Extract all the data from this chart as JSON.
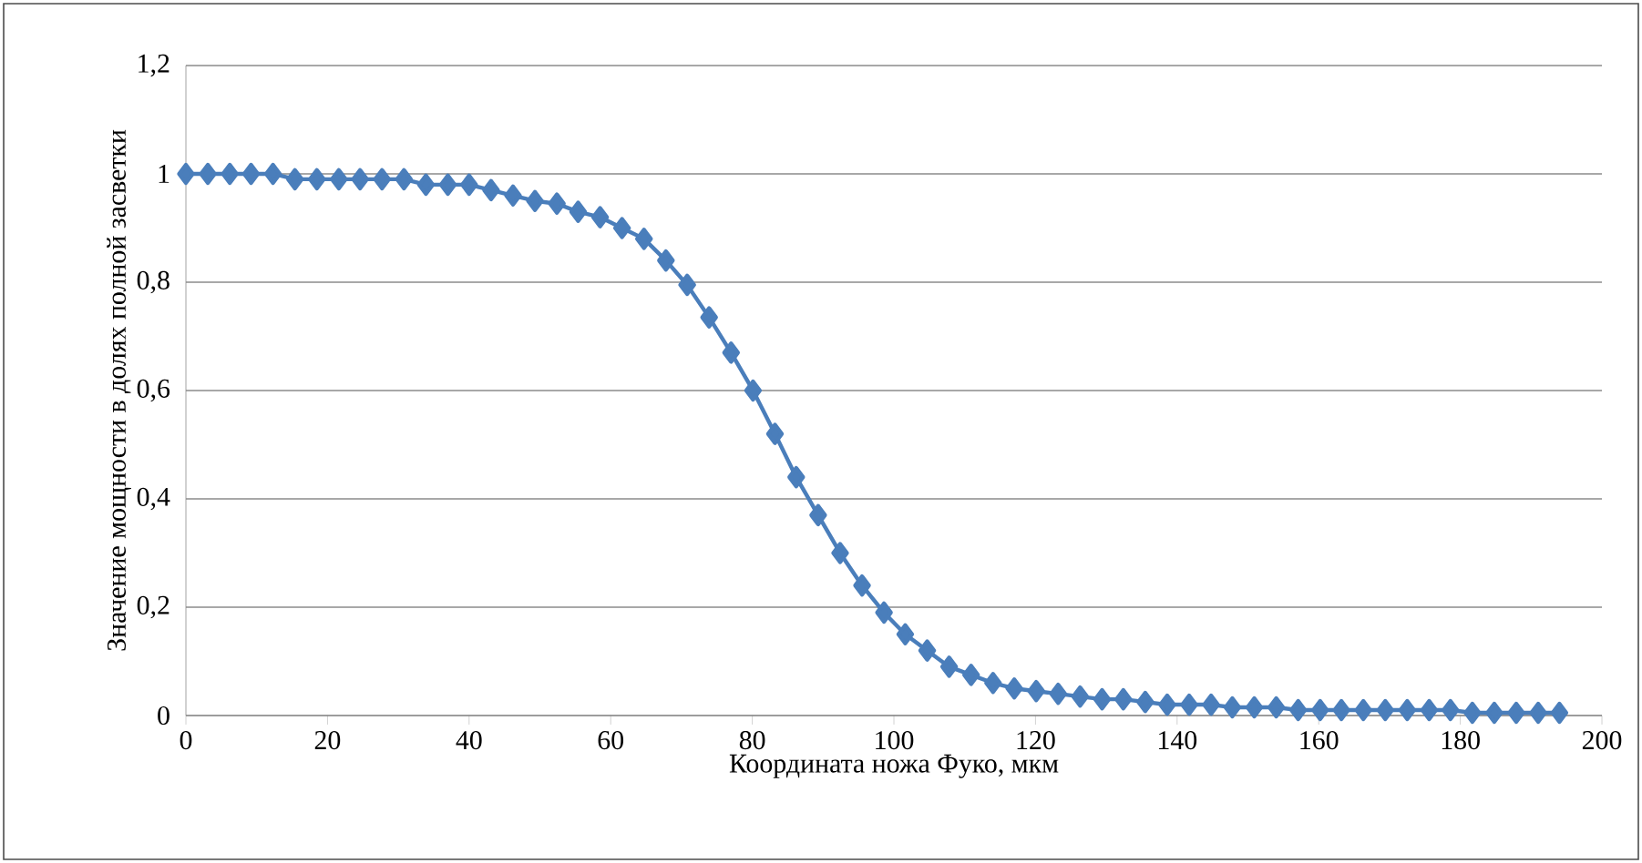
{
  "chart_data": {
    "type": "line",
    "xlabel": "Координата ножа Фуко, мкм",
    "ylabel": "Значение мощности в долях полной засветки",
    "x": [
      0,
      3.1,
      6.2,
      9.2,
      12.3,
      15.4,
      18.5,
      21.6,
      24.6,
      27.7,
      30.8,
      33.9,
      37,
      40,
      43.1,
      46.2,
      49.3,
      52.4,
      55.4,
      58.5,
      61.6,
      64.7,
      67.8,
      70.8,
      73.9,
      77,
      80.1,
      83.2,
      86.2,
      89.3,
      92.4,
      95.5,
      98.6,
      101.6,
      104.7,
      107.8,
      110.9,
      114,
      117,
      120.1,
      123.2,
      126.3,
      129.4,
      132.4,
      135.5,
      138.6,
      141.7,
      144.8,
      147.8,
      150.9,
      154,
      157.1,
      160.2,
      163.2,
      166.3,
      169.4,
      172.5,
      175.6,
      178.6,
      181.7,
      184.8,
      187.9,
      191,
      194
    ],
    "series": [
      {
        "color": "#4a7ebb",
        "values": [
          1.0,
          1.0,
          1.0,
          1.0,
          1.0,
          0.99,
          0.99,
          0.99,
          0.99,
          0.99,
          0.99,
          0.98,
          0.98,
          0.98,
          0.97,
          0.96,
          0.95,
          0.945,
          0.93,
          0.92,
          0.9,
          0.88,
          0.84,
          0.795,
          0.735,
          0.67,
          0.6,
          0.52,
          0.44,
          0.37,
          0.3,
          0.24,
          0.19,
          0.15,
          0.12,
          0.09,
          0.075,
          0.06,
          0.05,
          0.045,
          0.04,
          0.035,
          0.03,
          0.03,
          0.025,
          0.02,
          0.02,
          0.02,
          0.015,
          0.015,
          0.015,
          0.01,
          0.01,
          0.01,
          0.01,
          0.01,
          0.01,
          0.01,
          0.01,
          0.005,
          0.005,
          0.005,
          0.005,
          0.005
        ]
      }
    ],
    "xlim": [
      0,
      200
    ],
    "xticks": [
      0,
      20,
      40,
      60,
      80,
      100,
      120,
      140,
      160,
      180,
      200
    ],
    "ylim": [
      0,
      1.2
    ],
    "yticks": [
      0,
      {
        "value": 0.2,
        "label": "0,2"
      },
      {
        "value": 0.4,
        "label": "0,4"
      },
      {
        "value": 0.6,
        "label": "0,6"
      },
      {
        "value": 0.8,
        "label": "0,8"
      },
      1,
      {
        "value": 1.2,
        "label": "1,2"
      }
    ],
    "grid": "y",
    "marker": "diamond",
    "line_style": "solid"
  }
}
